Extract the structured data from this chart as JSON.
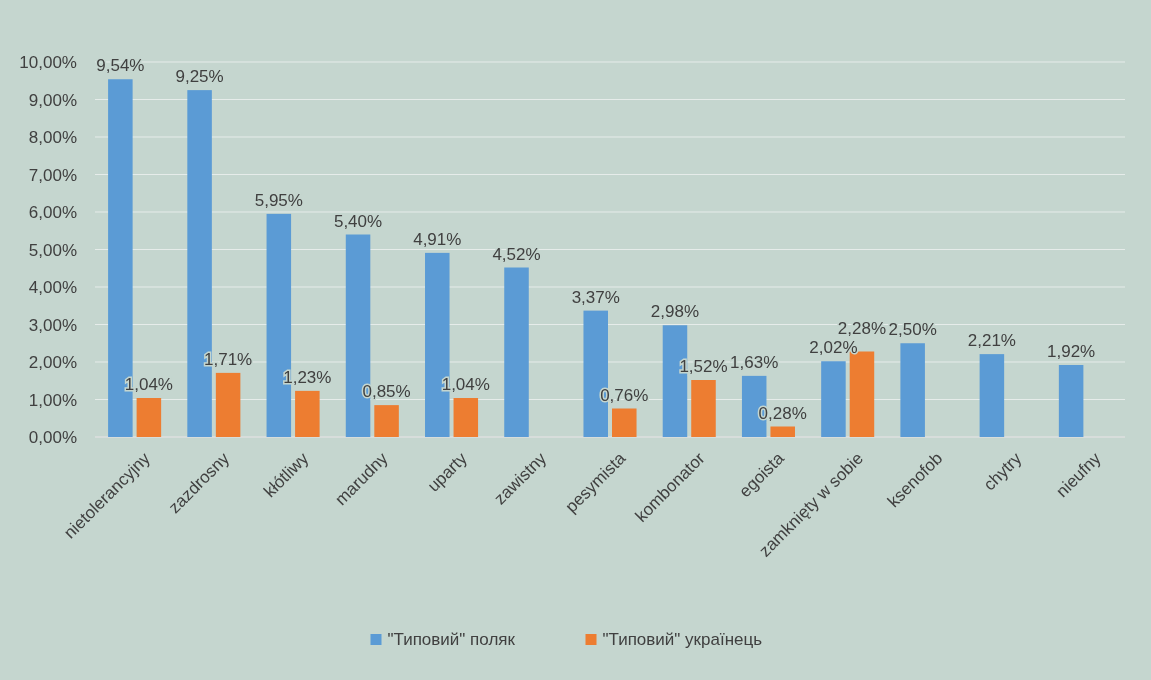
{
  "chart_data": {
    "type": "bar",
    "categories": [
      "nietolerancyjny",
      "zazdrosny",
      "kłótliwy",
      "marudny",
      "uparty",
      "zawistny",
      "pesymista",
      "kombonator",
      "egoista",
      "zamknięty w sobie",
      "ksenofob",
      "chytry",
      "nieufny"
    ],
    "series": [
      {
        "name": "\"Типовий\" поляк",
        "color": "#5b9bd5",
        "values": [
          9.54,
          9.25,
          5.95,
          5.4,
          4.91,
          4.52,
          3.37,
          2.98,
          1.63,
          2.02,
          2.5,
          2.21,
          1.92
        ],
        "value_labels": [
          "9,54%",
          "9,25%",
          "5,95%",
          "5,40%",
          "4,91%",
          "4,52%",
          "3,37%",
          "2,98%",
          "1,63%",
          "2,02%",
          "2,50%",
          "2,21%",
          "1,92%"
        ]
      },
      {
        "name": "\"Типовий\" українець",
        "color": "#ed7d31",
        "values": [
          1.04,
          1.71,
          1.23,
          0.85,
          1.04,
          null,
          0.76,
          1.52,
          0.28,
          2.28,
          null,
          null,
          null
        ],
        "value_labels": [
          "1,04%",
          "1,71%",
          "1,23%",
          "0,85%",
          "1,04%",
          null,
          "0,76%",
          "1,52%",
          "0,28%",
          "2,28%",
          null,
          null,
          null
        ]
      }
    ],
    "ylim": [
      0,
      10
    ],
    "yticks": [
      {
        "value": 0,
        "label": "0,00%"
      },
      {
        "value": 1,
        "label": "1,00%"
      },
      {
        "value": 2,
        "label": "2,00%"
      },
      {
        "value": 3,
        "label": "3,00%"
      },
      {
        "value": 4,
        "label": "4,00%"
      },
      {
        "value": 5,
        "label": "5,00%"
      },
      {
        "value": 6,
        "label": "6,00%"
      },
      {
        "value": 7,
        "label": "7,00%"
      },
      {
        "value": 8,
        "label": "8,00%"
      },
      {
        "value": 9,
        "label": "9,00%"
      },
      {
        "value": 10,
        "label": "10,00%"
      }
    ],
    "grid": "y",
    "legend": "bottom"
  }
}
